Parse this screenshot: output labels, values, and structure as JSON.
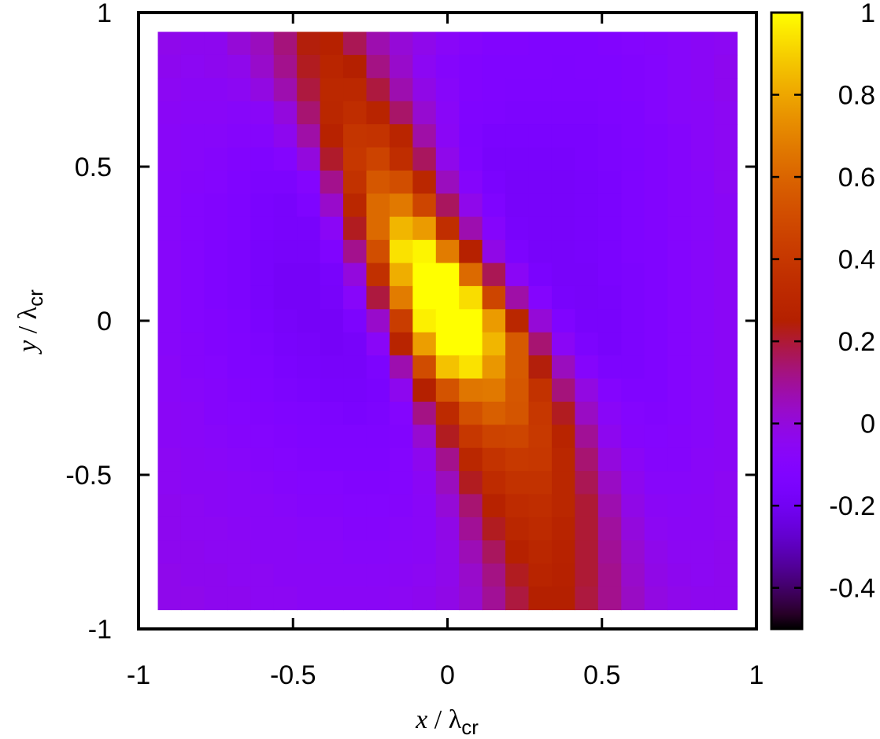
{
  "chart_data": {
    "type": "heatmap",
    "title": "",
    "xlabel": {
      "var": "x",
      "slash": " / ",
      "sym": "λ",
      "sub": "cr"
    },
    "ylabel": {
      "var": "y",
      "slash": " / ",
      "sym": "λ",
      "sub": "cr"
    },
    "xlim": [
      -1,
      1
    ],
    "ylim": [
      -1,
      1
    ],
    "xticks": [
      -1,
      -0.5,
      0,
      0.5,
      1
    ],
    "yticks": [
      -1,
      -0.5,
      0,
      0.5,
      1
    ],
    "xtick_labels": [
      "-1",
      "-0.5",
      "0",
      "0.5",
      "1"
    ],
    "ytick_labels": [
      "-1",
      "-0.5",
      "0",
      "0.5",
      "1"
    ],
    "grid": false,
    "colorbar": {
      "range": [
        -0.5,
        1
      ],
      "ticks": [
        -0.4,
        -0.2,
        0,
        0.2,
        0.4,
        0.6,
        0.8,
        1
      ],
      "tick_labels": [
        "-0.4",
        "-0.2",
        "0",
        "0.2",
        "0.4",
        "0.6",
        "0.8",
        "1"
      ],
      "palette": "gnuplot"
    },
    "grid_data": {
      "nx": 25,
      "ny": 25,
      "x_range": [
        -0.9375,
        0.9375
      ],
      "y_range": [
        -0.9375,
        0.9375
      ],
      "row_order": "top-to-bottom",
      "values": [
        [
          -0.03,
          -0.04,
          -0.04,
          0.01,
          0.05,
          0.13,
          0.24,
          0.26,
          0.17,
          0.07,
          0.01,
          -0.03,
          -0.07,
          -0.09,
          -0.11,
          -0.11,
          -0.12,
          -0.12,
          -0.12,
          -0.11,
          -0.1,
          -0.09,
          -0.08,
          -0.06,
          -0.05
        ],
        [
          -0.04,
          -0.05,
          -0.04,
          -0.03,
          0.03,
          0.11,
          0.22,
          0.29,
          0.25,
          0.12,
          0.03,
          -0.05,
          -0.09,
          -0.11,
          -0.12,
          -0.12,
          -0.12,
          -0.13,
          -0.12,
          -0.12,
          -0.11,
          -0.1,
          -0.08,
          -0.06,
          -0.04
        ],
        [
          -0.05,
          -0.06,
          -0.06,
          -0.05,
          -0.01,
          0.07,
          0.19,
          0.31,
          0.31,
          0.19,
          0.07,
          -0.02,
          -0.08,
          -0.11,
          -0.12,
          -0.13,
          -0.13,
          -0.13,
          -0.13,
          -0.12,
          -0.11,
          -0.1,
          -0.08,
          -0.06,
          -0.04
        ],
        [
          -0.06,
          -0.07,
          -0.07,
          -0.08,
          -0.07,
          0.0,
          0.14,
          0.3,
          0.34,
          0.28,
          0.15,
          0.02,
          -0.07,
          -0.12,
          -0.13,
          -0.14,
          -0.14,
          -0.14,
          -0.14,
          -0.13,
          -0.12,
          -0.1,
          -0.08,
          -0.07,
          -0.05
        ],
        [
          -0.07,
          -0.08,
          -0.08,
          -0.09,
          -0.09,
          -0.04,
          0.08,
          0.27,
          0.39,
          0.38,
          0.29,
          0.08,
          -0.06,
          -0.13,
          -0.15,
          -0.15,
          -0.15,
          -0.15,
          -0.15,
          -0.14,
          -0.12,
          -0.11,
          -0.09,
          -0.07,
          -0.05
        ],
        [
          -0.07,
          -0.08,
          -0.09,
          -0.11,
          -0.12,
          -0.1,
          0.0,
          0.21,
          0.4,
          0.46,
          0.34,
          0.16,
          -0.03,
          -0.12,
          -0.16,
          -0.16,
          -0.16,
          -0.16,
          -0.15,
          -0.14,
          -0.13,
          -0.11,
          -0.09,
          -0.07,
          -0.05
        ],
        [
          -0.08,
          -0.09,
          -0.1,
          -0.12,
          -0.14,
          -0.14,
          -0.1,
          0.11,
          0.37,
          0.55,
          0.51,
          0.3,
          0.05,
          -0.09,
          -0.15,
          -0.17,
          -0.17,
          -0.17,
          -0.16,
          -0.15,
          -0.13,
          -0.11,
          -0.09,
          -0.08,
          -0.05
        ],
        [
          -0.08,
          -0.1,
          -0.11,
          -0.13,
          -0.15,
          -0.16,
          -0.13,
          0.03,
          0.3,
          0.62,
          0.67,
          0.47,
          0.16,
          -0.03,
          -0.13,
          -0.17,
          -0.17,
          -0.17,
          -0.16,
          -0.15,
          -0.13,
          -0.11,
          -0.09,
          -0.08,
          -0.06
        ],
        [
          -0.08,
          -0.1,
          -0.11,
          -0.13,
          -0.15,
          -0.16,
          -0.16,
          -0.06,
          0.22,
          0.62,
          0.84,
          0.77,
          0.35,
          0.07,
          -0.09,
          -0.16,
          -0.17,
          -0.17,
          -0.16,
          -0.15,
          -0.13,
          -0.11,
          -0.09,
          -0.08,
          -0.06
        ],
        [
          -0.08,
          -0.1,
          -0.12,
          -0.14,
          -0.16,
          -0.17,
          -0.17,
          -0.12,
          0.11,
          0.51,
          0.94,
          0.98,
          0.68,
          0.26,
          -0.02,
          -0.14,
          -0.17,
          -0.17,
          -0.16,
          -0.15,
          -0.13,
          -0.12,
          -0.1,
          -0.08,
          -0.06
        ],
        [
          -0.08,
          -0.1,
          -0.12,
          -0.14,
          -0.16,
          -0.18,
          -0.18,
          -0.16,
          0.0,
          0.36,
          0.82,
          1.0,
          1.0,
          0.62,
          0.17,
          -0.06,
          -0.15,
          -0.17,
          -0.17,
          -0.15,
          -0.14,
          -0.12,
          -0.1,
          -0.08,
          -0.06
        ],
        [
          -0.08,
          -0.1,
          -0.12,
          -0.14,
          -0.16,
          -0.18,
          -0.18,
          -0.17,
          -0.08,
          0.19,
          0.68,
          1.0,
          1.0,
          0.93,
          0.47,
          0.08,
          -0.1,
          -0.16,
          -0.17,
          -0.16,
          -0.14,
          -0.12,
          -0.1,
          -0.08,
          -0.06
        ],
        [
          -0.08,
          -0.1,
          -0.11,
          -0.13,
          -0.15,
          -0.17,
          -0.18,
          -0.18,
          -0.14,
          0.03,
          0.43,
          0.97,
          1.0,
          1.0,
          0.77,
          0.3,
          0.01,
          -0.12,
          -0.16,
          -0.16,
          -0.14,
          -0.12,
          -0.1,
          -0.08,
          -0.06
        ],
        [
          -0.08,
          -0.09,
          -0.11,
          -0.12,
          -0.14,
          -0.16,
          -0.17,
          -0.18,
          -0.17,
          -0.07,
          0.28,
          0.78,
          1.0,
          1.0,
          0.84,
          0.56,
          0.14,
          -0.06,
          -0.14,
          -0.16,
          -0.14,
          -0.12,
          -0.1,
          -0.08,
          -0.06
        ],
        [
          -0.07,
          -0.09,
          -0.1,
          -0.12,
          -0.13,
          -0.15,
          -0.16,
          -0.17,
          -0.17,
          -0.14,
          0.07,
          0.5,
          0.87,
          0.94,
          0.76,
          0.56,
          0.24,
          0.05,
          -0.09,
          -0.14,
          -0.14,
          -0.12,
          -0.1,
          -0.08,
          -0.06
        ],
        [
          -0.07,
          -0.08,
          -0.09,
          -0.11,
          -0.12,
          -0.14,
          -0.15,
          -0.16,
          -0.16,
          -0.15,
          -0.04,
          0.25,
          0.53,
          0.66,
          0.67,
          0.55,
          0.37,
          0.13,
          -0.01,
          -0.1,
          -0.12,
          -0.12,
          -0.1,
          -0.08,
          -0.06
        ],
        [
          -0.06,
          -0.07,
          -0.09,
          -0.1,
          -0.11,
          -0.12,
          -0.13,
          -0.14,
          -0.15,
          -0.14,
          -0.1,
          0.12,
          0.32,
          0.52,
          0.58,
          0.54,
          0.4,
          0.22,
          0.04,
          -0.07,
          -0.1,
          -0.11,
          -0.1,
          -0.08,
          -0.06
        ],
        [
          -0.06,
          -0.07,
          -0.08,
          -0.09,
          -0.1,
          -0.11,
          -0.12,
          -0.13,
          -0.13,
          -0.13,
          -0.11,
          0.02,
          0.22,
          0.4,
          0.46,
          0.47,
          0.41,
          0.28,
          0.1,
          -0.04,
          -0.09,
          -0.1,
          -0.09,
          -0.08,
          -0.06
        ],
        [
          -0.05,
          -0.06,
          -0.07,
          -0.08,
          -0.09,
          -0.1,
          -0.11,
          -0.12,
          -0.12,
          -0.12,
          -0.1,
          -0.04,
          0.11,
          0.3,
          0.38,
          0.41,
          0.4,
          0.3,
          0.14,
          0.0,
          -0.06,
          -0.09,
          -0.09,
          -0.07,
          -0.06
        ],
        [
          -0.05,
          -0.06,
          -0.06,
          -0.07,
          -0.08,
          -0.09,
          -0.1,
          -0.1,
          -0.11,
          -0.11,
          -0.1,
          -0.06,
          0.05,
          0.22,
          0.33,
          0.37,
          0.37,
          0.3,
          0.17,
          0.04,
          -0.04,
          -0.08,
          -0.08,
          -0.07,
          -0.05
        ],
        [
          -0.04,
          -0.05,
          -0.06,
          -0.07,
          -0.07,
          -0.08,
          -0.09,
          -0.09,
          -0.1,
          -0.1,
          -0.09,
          -0.07,
          0.01,
          0.14,
          0.27,
          0.33,
          0.34,
          0.3,
          0.2,
          0.07,
          -0.02,
          -0.06,
          -0.07,
          -0.06,
          -0.05
        ],
        [
          -0.04,
          -0.05,
          -0.05,
          -0.06,
          -0.07,
          -0.07,
          -0.08,
          -0.08,
          -0.09,
          -0.09,
          -0.08,
          -0.07,
          -0.02,
          0.1,
          0.22,
          0.3,
          0.32,
          0.28,
          0.2,
          0.09,
          0.0,
          -0.05,
          -0.06,
          -0.06,
          -0.05
        ],
        [
          -0.04,
          -0.04,
          -0.05,
          -0.05,
          -0.06,
          -0.06,
          -0.07,
          -0.07,
          -0.08,
          -0.08,
          -0.07,
          -0.06,
          -0.03,
          0.06,
          0.16,
          0.26,
          0.3,
          0.27,
          0.2,
          0.1,
          0.02,
          -0.03,
          -0.05,
          -0.05,
          -0.04
        ],
        [
          -0.03,
          -0.04,
          -0.04,
          -0.05,
          -0.05,
          -0.06,
          -0.06,
          -0.07,
          -0.07,
          -0.07,
          -0.06,
          -0.05,
          -0.03,
          0.03,
          0.12,
          0.22,
          0.28,
          0.26,
          0.2,
          0.11,
          0.03,
          -0.02,
          -0.04,
          -0.05,
          -0.04
        ],
        [
          -0.03,
          -0.03,
          -0.04,
          -0.04,
          -0.05,
          -0.05,
          -0.06,
          -0.06,
          -0.06,
          -0.06,
          -0.05,
          -0.04,
          -0.02,
          0.02,
          0.1,
          0.19,
          0.25,
          0.25,
          0.19,
          0.11,
          0.04,
          -0.01,
          -0.03,
          -0.04,
          -0.04
        ]
      ]
    }
  }
}
